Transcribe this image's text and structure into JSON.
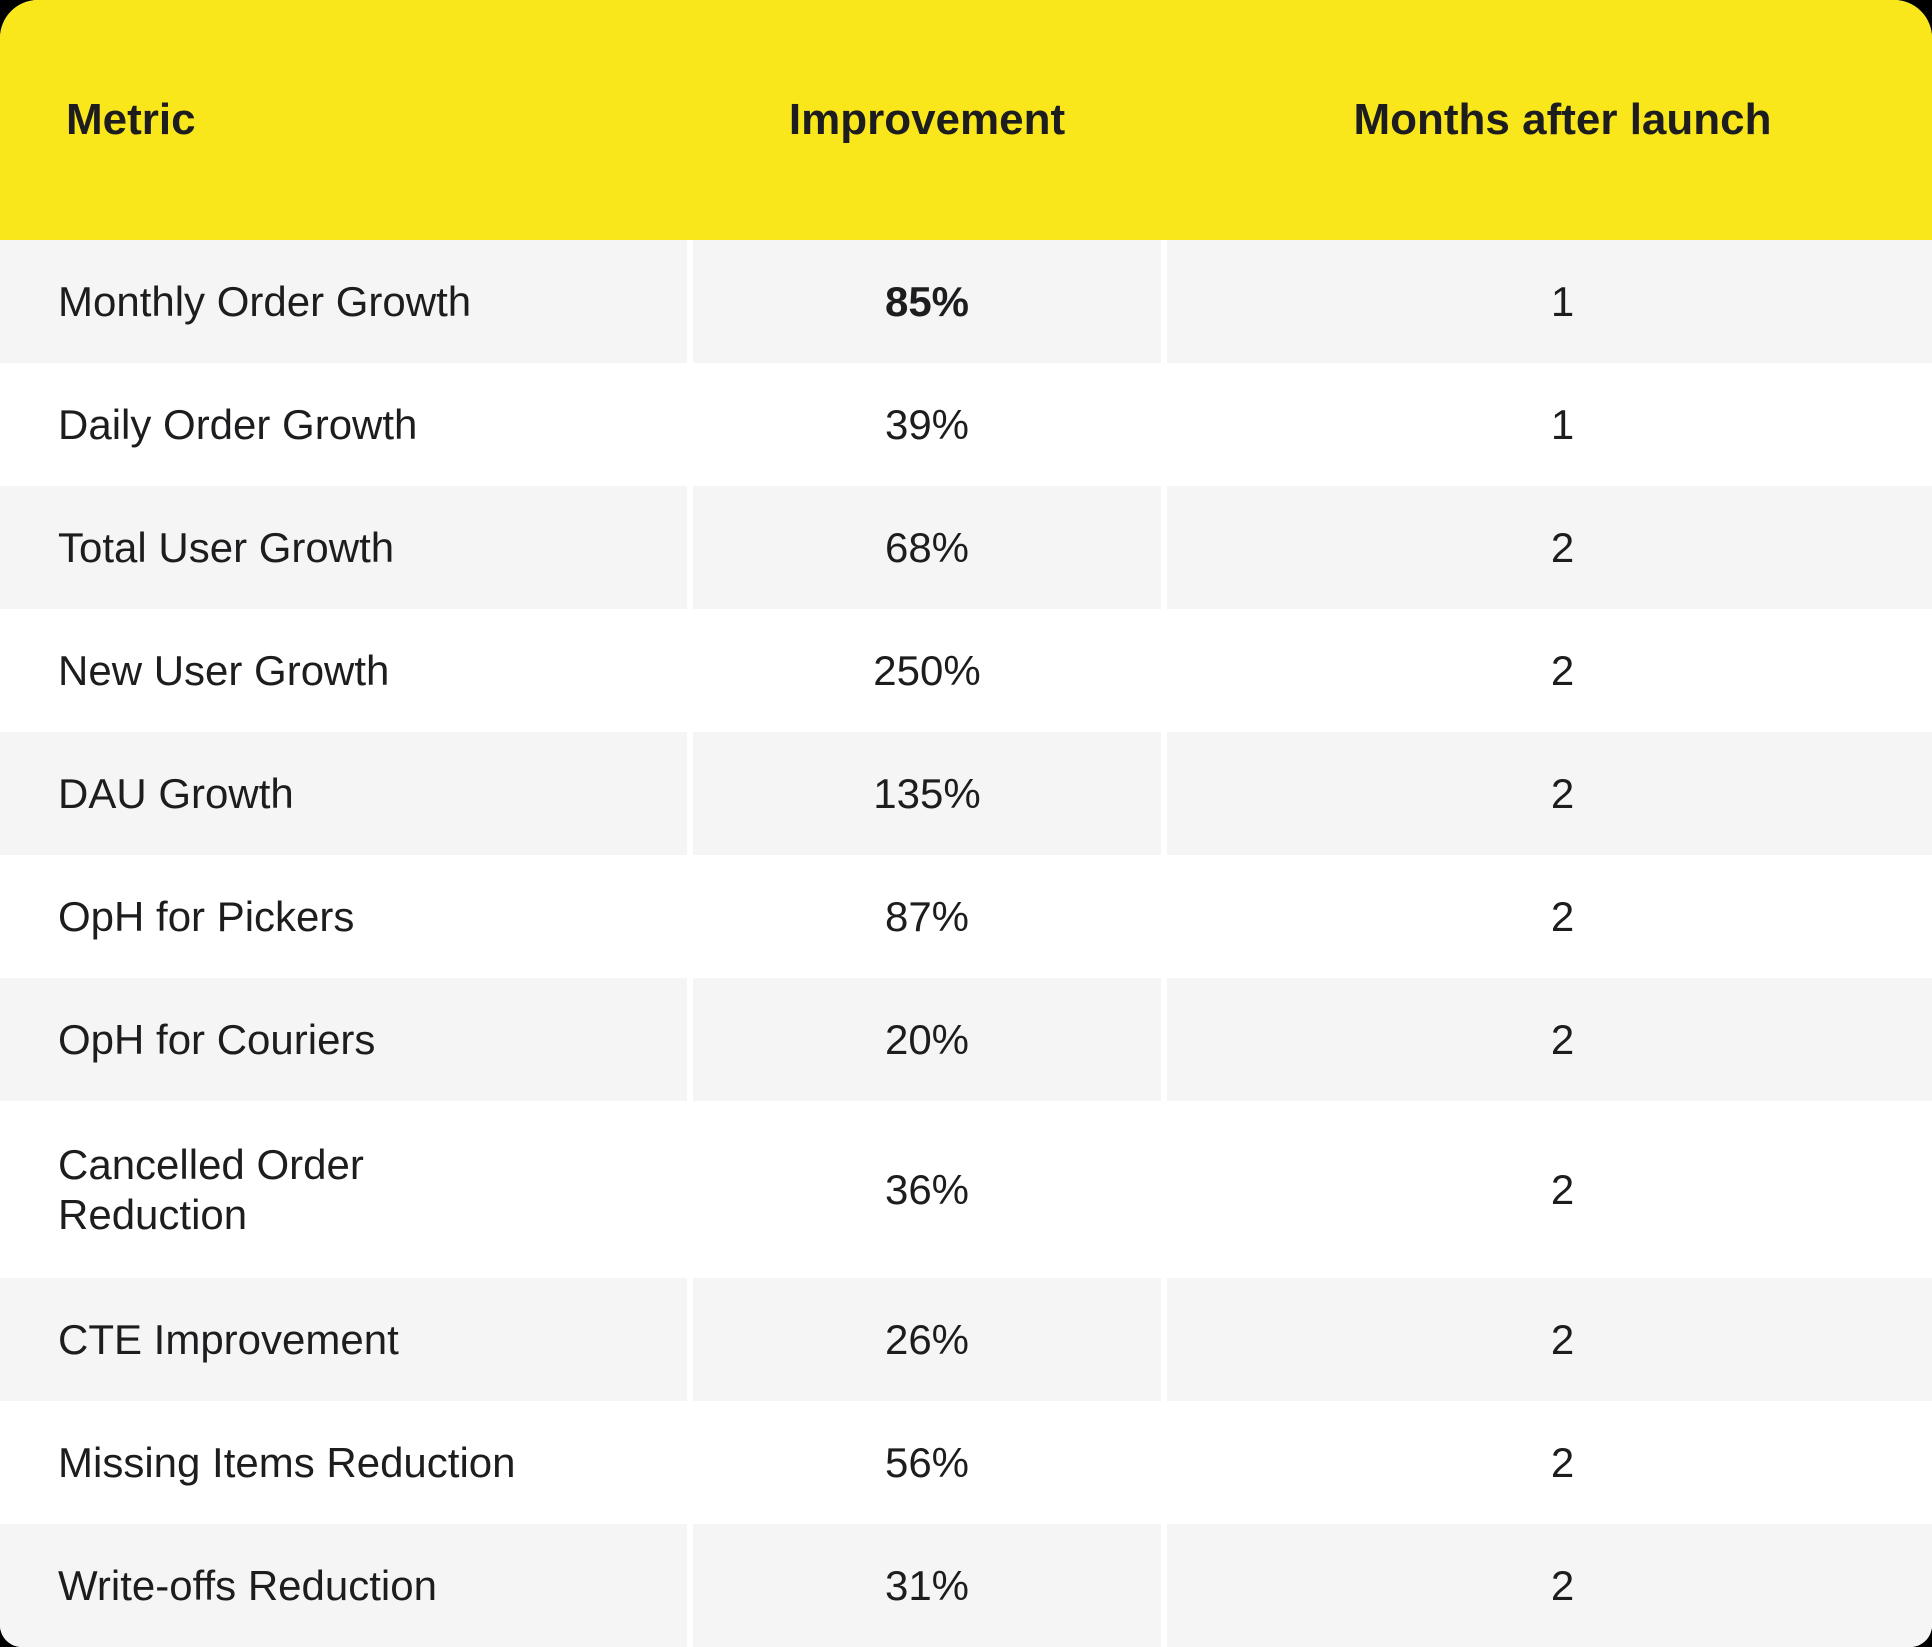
{
  "colors": {
    "header_bg": "#f9e71b",
    "row_alt_bg": "#f5f5f5",
    "row_bg": "#ffffff",
    "text": "#1d1d1f",
    "page_bg": "#000000"
  },
  "table": {
    "columns": [
      {
        "label": "Metric"
      },
      {
        "label": "Improvement"
      },
      {
        "label": "Months after launch"
      }
    ],
    "rows": [
      {
        "metric": "Monthly Order Growth",
        "improvement": "85%",
        "months": "1",
        "improvement_bold": true
      },
      {
        "metric": "Daily Order Growth",
        "improvement": "39%",
        "months": "1",
        "improvement_bold": false
      },
      {
        "metric": "Total User Growth",
        "improvement": "68%",
        "months": "2",
        "improvement_bold": false
      },
      {
        "metric": "New User Growth",
        "improvement": "250%",
        "months": "2",
        "improvement_bold": false
      },
      {
        "metric": "DAU Growth",
        "improvement": "135%",
        "months": "2",
        "improvement_bold": false
      },
      {
        "metric": "OpH for Pickers",
        "improvement": "87%",
        "months": "2",
        "improvement_bold": false
      },
      {
        "metric": "OpH for Couriers",
        "improvement": "20%",
        "months": "2",
        "improvement_bold": false
      },
      {
        "metric": "Cancelled Order Reduction",
        "improvement": "36%",
        "months": "2",
        "improvement_bold": false
      },
      {
        "metric": "CTE Improvement",
        "improvement": "26%",
        "months": "2",
        "improvement_bold": false
      },
      {
        "metric": "Missing Items Reduction",
        "improvement": "56%",
        "months": "2",
        "improvement_bold": false
      },
      {
        "metric": "Write-offs Reduction",
        "improvement": "31%",
        "months": "2",
        "improvement_bold": false
      }
    ]
  }
}
